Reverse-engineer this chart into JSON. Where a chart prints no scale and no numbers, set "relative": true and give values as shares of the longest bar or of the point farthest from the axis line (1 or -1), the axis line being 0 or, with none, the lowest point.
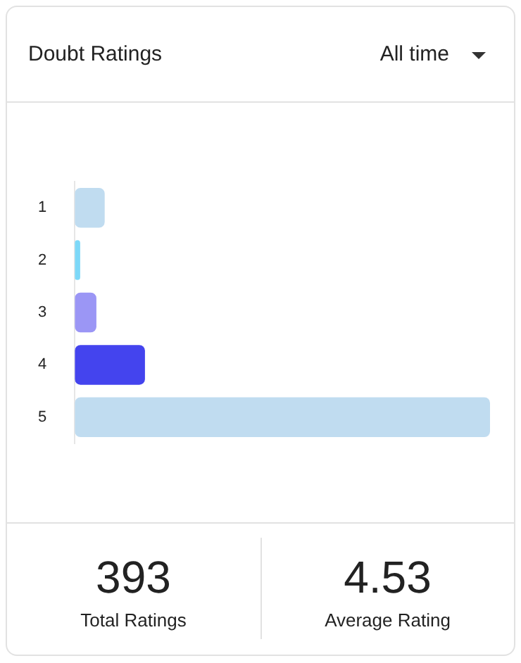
{
  "chart_data": {
    "type": "bar",
    "title": "Doubt Ratings",
    "orientation": "horizontal",
    "relative": true,
    "categories": [
      "1",
      "2",
      "3",
      "4",
      "5"
    ],
    "values": [
      0.072,
      0.013,
      0.052,
      0.169,
      1
    ],
    "colors": [
      "#c0dcf0",
      "#7dd8f8",
      "#9b96f5",
      "#4444ee",
      "#c0dcf0"
    ],
    "annotations": [
      "All time",
      "393",
      "Total Ratings",
      "4.53",
      "Average Rating"
    ],
    "grid": false,
    "legend": false
  }
}
